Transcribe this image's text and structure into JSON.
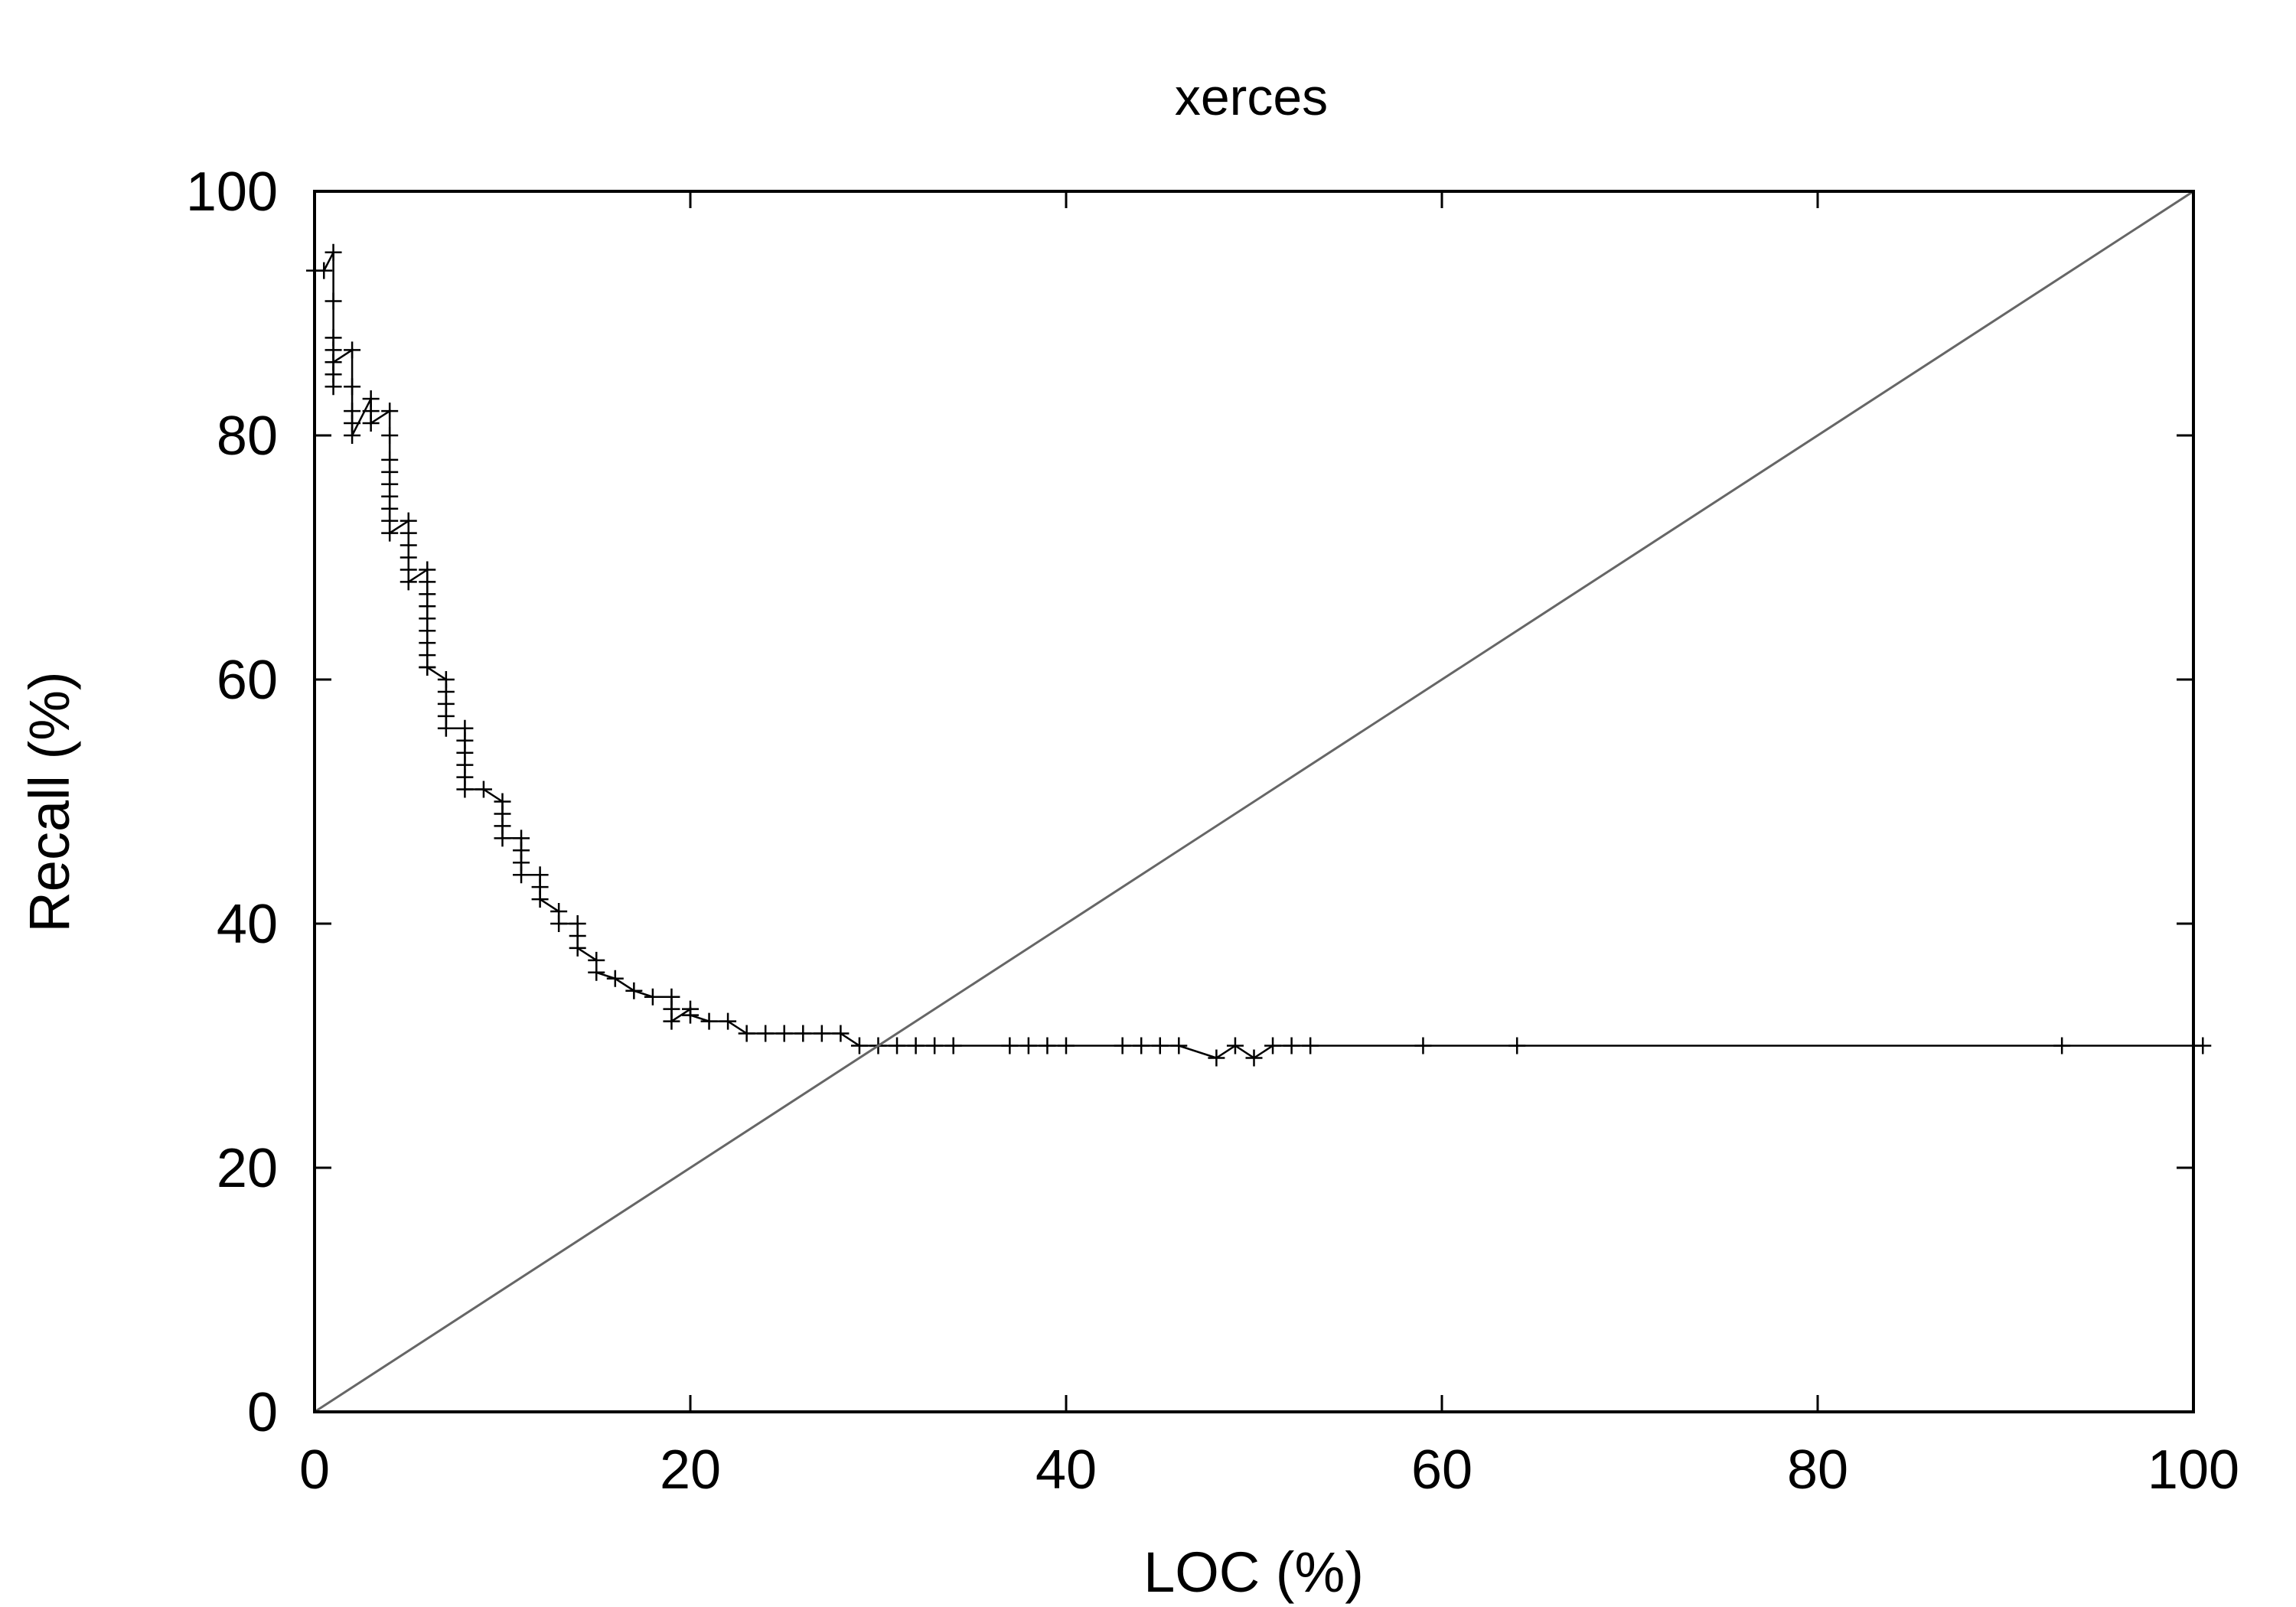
{
  "chart_data": {
    "type": "line",
    "title": "xerces",
    "xlabel": "LOC (%)",
    "ylabel": "Recall (%)",
    "xlim": [
      0,
      100
    ],
    "ylim": [
      0,
      100
    ],
    "xticks": [
      0,
      20,
      40,
      60,
      80,
      100
    ],
    "yticks": [
      0,
      20,
      40,
      60,
      80,
      100
    ],
    "xtick_labels": [
      "0",
      "20",
      "40",
      "60",
      "80",
      "100"
    ],
    "ytick_labels": [
      "0",
      "20",
      "40",
      "60",
      "80",
      "100"
    ],
    "grid": false,
    "legend": "none",
    "series": [
      {
        "style": "line+cross-markers",
        "color": "#000000",
        "x": [
          0.0,
          0.5,
          1.0,
          1.0,
          1.0,
          1.0,
          1.0,
          1.0,
          1.0,
          1.0,
          2.0,
          2.0,
          2.0,
          2.0,
          2.0,
          3.0,
          3.0,
          3.0,
          4.0,
          4.0,
          4.0,
          4.0,
          4.0,
          4.0,
          4.0,
          4.0,
          4.0,
          5.0,
          5.0,
          5.0,
          5.0,
          5.0,
          5.0,
          6.0,
          6.0,
          6.0,
          6.0,
          6.0,
          6.0,
          6.0,
          6.0,
          6.0,
          6.0,
          7.0,
          7.0,
          7.0,
          7.0,
          7.0,
          8.0,
          8.0,
          8.0,
          8.0,
          8.0,
          8.0,
          9.0,
          10.0,
          10.0,
          10.0,
          10.0,
          11.0,
          11.0,
          11.0,
          11.0,
          12.0,
          12.0,
          12.0,
          13.0,
          13.0,
          14.0,
          14.0,
          14.0,
          15.0,
          15.0,
          16.0,
          17.0,
          18.0,
          19.0,
          19.0,
          19.0,
          20.0,
          20.0,
          21.0,
          22.0,
          23.0,
          24.0,
          25.0,
          26.0,
          27.0,
          28.0,
          29.0,
          30.0,
          31.0,
          32.0,
          33.0,
          34.0,
          37.0,
          38.0,
          39.0,
          40.0,
          43.0,
          44.0,
          45.0,
          46.0,
          48.0,
          49.0,
          50.0,
          51.0,
          52.0,
          53.0,
          59.0,
          64.0,
          93.0,
          100.5
        ],
        "y": [
          93.5,
          93.5,
          95.0,
          91.0,
          88.0,
          87.0,
          86.0,
          85.0,
          84.0,
          86.0,
          87.0,
          84.0,
          82.0,
          81.0,
          80.0,
          83.0,
          82.0,
          81.0,
          82.0,
          80.0,
          78.0,
          77.0,
          76.0,
          75.0,
          74.0,
          73.0,
          72.0,
          73.0,
          72.0,
          71.0,
          70.0,
          69.0,
          68.0,
          69.0,
          68.0,
          67.0,
          66.0,
          65.0,
          64.0,
          63.0,
          62.0,
          61.0,
          61.0,
          60.0,
          59.0,
          58.0,
          57.0,
          56.0,
          56.0,
          55.0,
          54.0,
          53.0,
          52.0,
          51.0,
          51.0,
          50.0,
          49.0,
          48.0,
          47.0,
          47.0,
          46.0,
          45.0,
          44.0,
          44.0,
          43.0,
          42.0,
          41.0,
          40.0,
          40.0,
          39.0,
          38.0,
          37.0,
          36.0,
          35.5,
          34.5,
          34.0,
          34.0,
          33.0,
          32.0,
          33.0,
          32.5,
          32.0,
          32.0,
          31.0,
          31.0,
          31.0,
          31.0,
          31.0,
          31.0,
          30.0,
          30.0,
          30.0,
          30.0,
          30.0,
          30.0,
          30.0,
          30.0,
          30.0,
          30.0,
          30.0,
          30.0,
          30.0,
          30.0,
          29.0,
          30.0,
          29.0,
          30.0,
          30.0,
          30.0,
          30.0,
          30.0,
          30.0,
          30.0
        ]
      },
      {
        "style": "line",
        "color": "#666666",
        "x": [
          0,
          100
        ],
        "y": [
          0,
          100
        ]
      }
    ]
  }
}
